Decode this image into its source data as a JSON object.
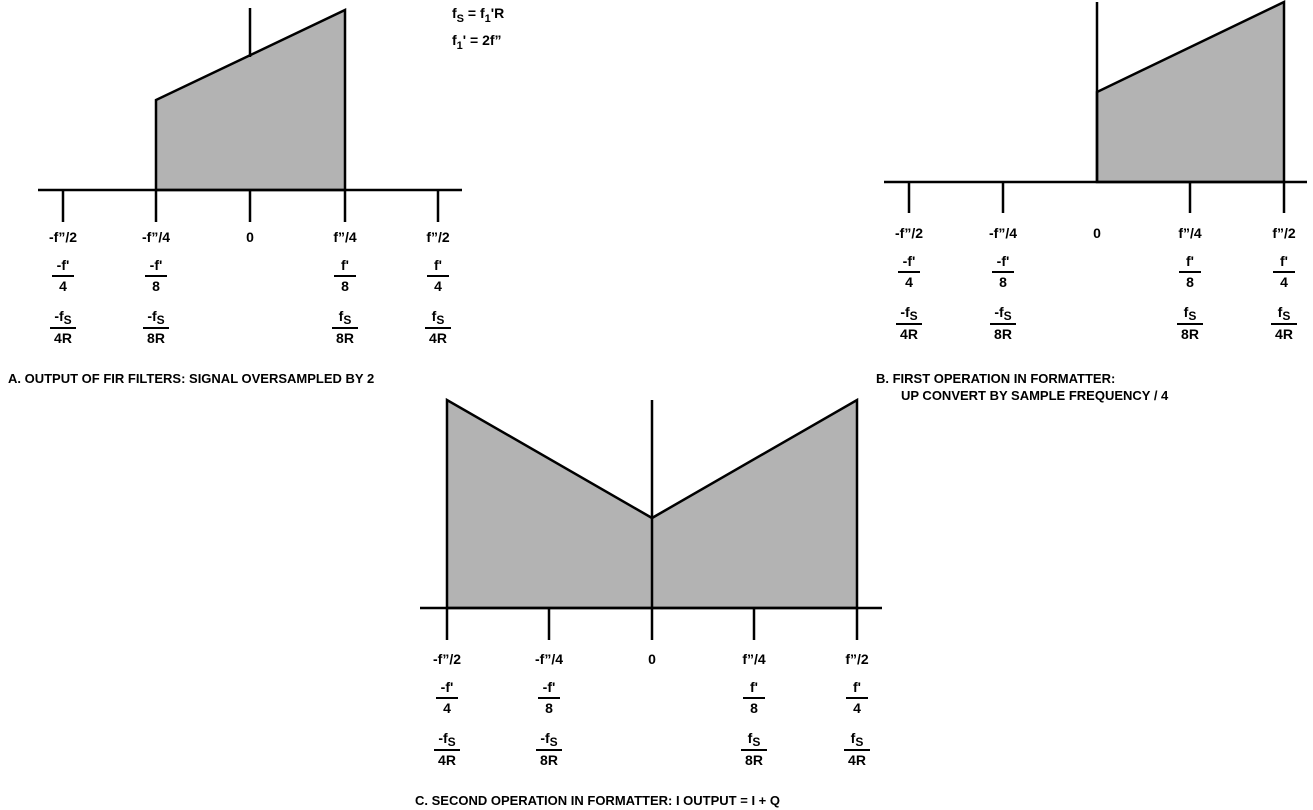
{
  "annotations": {
    "eq1": {
      "base": "f",
      "sub": "S",
      "rest": " = f",
      "sub2": "1",
      "tail": "'R"
    },
    "eq2": {
      "base": "f",
      "sub": "1",
      "rest": "' = 2f”"
    }
  },
  "tick_labels": {
    "row1": [
      "-f”/2",
      "-f”/4",
      "0",
      "f”/4",
      "f”/2"
    ],
    "row2_num": [
      "-f'",
      "-f'",
      "",
      "f'",
      "f'"
    ],
    "row2_den": [
      "4",
      "8",
      "",
      "8",
      "4"
    ],
    "row3_num": [
      "-f",
      "-f",
      "",
      "f",
      "f"
    ],
    "row3_num_sub": [
      "S",
      "S",
      "",
      "S",
      "S"
    ],
    "row3_den": [
      "4R",
      "8R",
      "",
      "8R",
      "4R"
    ]
  },
  "captions": {
    "a": "A.  OUTPUT OF FIR FILTERS: SIGNAL OVERSAMPLED BY 2",
    "b1": "B.  FIRST OPERATION IN FORMATTER:",
    "b2": "UP CONVERT BY SAMPLE FREQUENCY / 4",
    "c": "C.  SECOND OPERATION IN FORMATTER: I OUTPUT = I + Q"
  },
  "colors": {
    "fill": "#b3b3b3",
    "stroke": "#000000"
  },
  "spectra": {
    "a": {
      "band": [
        "-f”/4",
        "f”/4"
      ],
      "level_left": 0.47,
      "level_right": 1.0,
      "shape": "ramp-up"
    },
    "b": {
      "band": [
        "0",
        "f”/2"
      ],
      "level_left": 0.5,
      "level_right": 1.0,
      "shape": "ramp-up"
    },
    "c": {
      "band": [
        "-f”/2",
        "f”/2"
      ],
      "level_left": 1.0,
      "level_center": 0.5,
      "level_right": 1.0,
      "shape": "v"
    }
  }
}
